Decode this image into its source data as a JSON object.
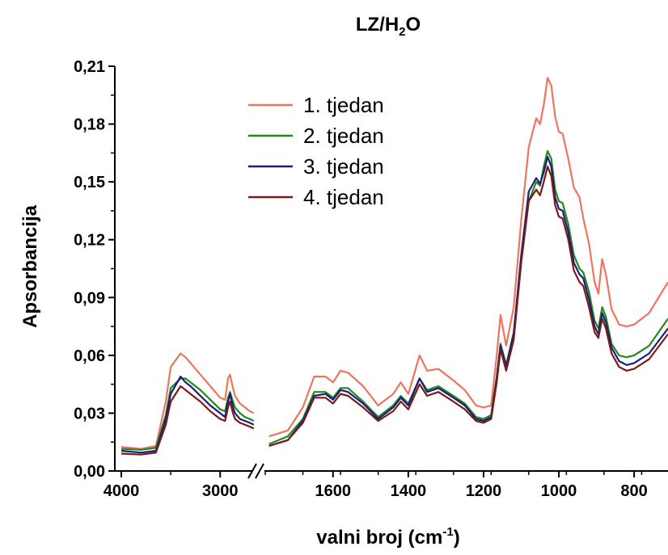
{
  "chart_data": {
    "type": "line",
    "title_main": "LZ/H",
    "title_sub": "2",
    "title_end": "O",
    "xlabel_main": "valni broj (cm",
    "xlabel_sup": "-1",
    "xlabel_end": ")",
    "ylabel": "Apsorbancija",
    "ylim": [
      0,
      0.21
    ],
    "yticks": [
      "0,00",
      "0,03",
      "0,06",
      "0,09",
      "0,12",
      "0,15",
      "0,18",
      "0,21"
    ],
    "x_segments": [
      {
        "xlim": [
          4000,
          2650
        ],
        "ticks": [
          4000,
          3000
        ]
      },
      {
        "xlim": [
          1780,
          710
        ],
        "ticks": [
          1600,
          1400,
          1200,
          1000,
          800
        ]
      }
    ],
    "legend_position": "top-center",
    "series": [
      {
        "name": "1. tjedan",
        "color": "#ed7560",
        "seg1": [
          [
            4000,
            0.0125
          ],
          [
            3800,
            0.0115
          ],
          [
            3650,
            0.013
          ],
          [
            3550,
            0.036
          ],
          [
            3500,
            0.054
          ],
          [
            3400,
            0.061
          ],
          [
            3350,
            0.059
          ],
          [
            3300,
            0.056
          ],
          [
            3200,
            0.05
          ],
          [
            3100,
            0.044
          ],
          [
            3000,
            0.038
          ],
          [
            2950,
            0.037
          ],
          [
            2920,
            0.048
          ],
          [
            2900,
            0.05
          ],
          [
            2870,
            0.043
          ],
          [
            2850,
            0.039
          ],
          [
            2800,
            0.035
          ],
          [
            2750,
            0.033
          ],
          [
            2700,
            0.031
          ],
          [
            2660,
            0.03
          ]
        ],
        "seg2": [
          [
            1770,
            0.018
          ],
          [
            1720,
            0.021
          ],
          [
            1680,
            0.033
          ],
          [
            1650,
            0.049
          ],
          [
            1620,
            0.049
          ],
          [
            1600,
            0.046
          ],
          [
            1580,
            0.052
          ],
          [
            1560,
            0.051
          ],
          [
            1520,
            0.044
          ],
          [
            1480,
            0.034
          ],
          [
            1440,
            0.04
          ],
          [
            1420,
            0.046
          ],
          [
            1400,
            0.04
          ],
          [
            1370,
            0.06
          ],
          [
            1350,
            0.052
          ],
          [
            1320,
            0.053
          ],
          [
            1280,
            0.047
          ],
          [
            1250,
            0.042
          ],
          [
            1220,
            0.034
          ],
          [
            1200,
            0.033
          ],
          [
            1180,
            0.034
          ],
          [
            1165,
            0.06
          ],
          [
            1155,
            0.081
          ],
          [
            1140,
            0.065
          ],
          [
            1120,
            0.085
          ],
          [
            1100,
            0.13
          ],
          [
            1080,
            0.168
          ],
          [
            1060,
            0.183
          ],
          [
            1050,
            0.18
          ],
          [
            1040,
            0.19
          ],
          [
            1030,
            0.204
          ],
          [
            1020,
            0.2
          ],
          [
            1010,
            0.184
          ],
          [
            1000,
            0.176
          ],
          [
            990,
            0.175
          ],
          [
            975,
            0.162
          ],
          [
            960,
            0.147
          ],
          [
            945,
            0.142
          ],
          [
            935,
            0.131
          ],
          [
            920,
            0.118
          ],
          [
            905,
            0.098
          ],
          [
            895,
            0.092
          ],
          [
            885,
            0.11
          ],
          [
            875,
            0.102
          ],
          [
            860,
            0.084
          ],
          [
            840,
            0.076
          ],
          [
            820,
            0.075
          ],
          [
            800,
            0.076
          ],
          [
            760,
            0.082
          ],
          [
            710,
            0.098
          ]
        ]
      },
      {
        "name": "2. tjedan",
        "color": "#1e8a1e",
        "seg1": [
          [
            4000,
            0.0115
          ],
          [
            3800,
            0.011
          ],
          [
            3650,
            0.012
          ],
          [
            3550,
            0.029
          ],
          [
            3500,
            0.043
          ],
          [
            3400,
            0.048
          ],
          [
            3350,
            0.048
          ],
          [
            3300,
            0.046
          ],
          [
            3200,
            0.042
          ],
          [
            3100,
            0.037
          ],
          [
            3000,
            0.032
          ],
          [
            2950,
            0.031
          ],
          [
            2920,
            0.038
          ],
          [
            2900,
            0.041
          ],
          [
            2870,
            0.036
          ],
          [
            2850,
            0.033
          ],
          [
            2800,
            0.03
          ],
          [
            2750,
            0.028
          ],
          [
            2700,
            0.027
          ],
          [
            2660,
            0.026
          ]
        ],
        "seg2": [
          [
            1770,
            0.014
          ],
          [
            1720,
            0.018
          ],
          [
            1680,
            0.027
          ],
          [
            1650,
            0.041
          ],
          [
            1620,
            0.041
          ],
          [
            1600,
            0.038
          ],
          [
            1580,
            0.043
          ],
          [
            1560,
            0.043
          ],
          [
            1520,
            0.036
          ],
          [
            1480,
            0.028
          ],
          [
            1440,
            0.034
          ],
          [
            1420,
            0.039
          ],
          [
            1400,
            0.035
          ],
          [
            1370,
            0.048
          ],
          [
            1350,
            0.042
          ],
          [
            1320,
            0.044
          ],
          [
            1280,
            0.039
          ],
          [
            1250,
            0.035
          ],
          [
            1220,
            0.028
          ],
          [
            1200,
            0.027
          ],
          [
            1180,
            0.029
          ],
          [
            1165,
            0.049
          ],
          [
            1155,
            0.066
          ],
          [
            1140,
            0.055
          ],
          [
            1120,
            0.072
          ],
          [
            1100,
            0.11
          ],
          [
            1080,
            0.14
          ],
          [
            1060,
            0.15
          ],
          [
            1050,
            0.148
          ],
          [
            1040,
            0.158
          ],
          [
            1030,
            0.166
          ],
          [
            1020,
            0.162
          ],
          [
            1010,
            0.146
          ],
          [
            1000,
            0.14
          ],
          [
            990,
            0.139
          ],
          [
            975,
            0.128
          ],
          [
            960,
            0.112
          ],
          [
            945,
            0.105
          ],
          [
            935,
            0.103
          ],
          [
            920,
            0.093
          ],
          [
            905,
            0.078
          ],
          [
            895,
            0.074
          ],
          [
            885,
            0.085
          ],
          [
            875,
            0.08
          ],
          [
            860,
            0.066
          ],
          [
            840,
            0.06
          ],
          [
            820,
            0.059
          ],
          [
            800,
            0.06
          ],
          [
            760,
            0.065
          ],
          [
            710,
            0.079
          ]
        ]
      },
      {
        "name": "3. tjedan",
        "color": "#1c1c7a",
        "seg1": [
          [
            4000,
            0.0105
          ],
          [
            3800,
            0.0095
          ],
          [
            3650,
            0.0105
          ],
          [
            3550,
            0.027
          ],
          [
            3500,
            0.04
          ],
          [
            3400,
            0.049
          ],
          [
            3350,
            0.046
          ],
          [
            3300,
            0.044
          ],
          [
            3200,
            0.039
          ],
          [
            3100,
            0.034
          ],
          [
            3000,
            0.03
          ],
          [
            2950,
            0.028
          ],
          [
            2920,
            0.036
          ],
          [
            2900,
            0.04
          ],
          [
            2870,
            0.033
          ],
          [
            2850,
            0.03
          ],
          [
            2800,
            0.027
          ],
          [
            2750,
            0.026
          ],
          [
            2700,
            0.025
          ],
          [
            2660,
            0.024
          ]
        ],
        "seg2": [
          [
            1770,
            0.013
          ],
          [
            1720,
            0.016
          ],
          [
            1680,
            0.026
          ],
          [
            1650,
            0.039
          ],
          [
            1620,
            0.04
          ],
          [
            1600,
            0.037
          ],
          [
            1580,
            0.042
          ],
          [
            1560,
            0.041
          ],
          [
            1520,
            0.035
          ],
          [
            1480,
            0.027
          ],
          [
            1440,
            0.033
          ],
          [
            1420,
            0.038
          ],
          [
            1400,
            0.034
          ],
          [
            1370,
            0.048
          ],
          [
            1350,
            0.041
          ],
          [
            1320,
            0.043
          ],
          [
            1280,
            0.038
          ],
          [
            1250,
            0.034
          ],
          [
            1220,
            0.027
          ],
          [
            1200,
            0.026
          ],
          [
            1180,
            0.028
          ],
          [
            1165,
            0.048
          ],
          [
            1155,
            0.065
          ],
          [
            1140,
            0.054
          ],
          [
            1120,
            0.071
          ],
          [
            1100,
            0.112
          ],
          [
            1080,
            0.145
          ],
          [
            1060,
            0.152
          ],
          [
            1050,
            0.149
          ],
          [
            1040,
            0.155
          ],
          [
            1030,
            0.163
          ],
          [
            1020,
            0.158
          ],
          [
            1010,
            0.142
          ],
          [
            1000,
            0.136
          ],
          [
            990,
            0.135
          ],
          [
            975,
            0.124
          ],
          [
            960,
            0.108
          ],
          [
            945,
            0.102
          ],
          [
            935,
            0.1
          ],
          [
            920,
            0.089
          ],
          [
            905,
            0.075
          ],
          [
            895,
            0.071
          ],
          [
            885,
            0.082
          ],
          [
            875,
            0.077
          ],
          [
            860,
            0.064
          ],
          [
            840,
            0.057
          ],
          [
            820,
            0.055
          ],
          [
            800,
            0.056
          ],
          [
            760,
            0.061
          ],
          [
            710,
            0.074
          ]
        ]
      },
      {
        "name": "4. tjedan",
        "color": "#7a1a1a",
        "seg1": [
          [
            4000,
            0.009
          ],
          [
            3800,
            0.0085
          ],
          [
            3650,
            0.0095
          ],
          [
            3550,
            0.024
          ],
          [
            3500,
            0.036
          ],
          [
            3400,
            0.044
          ],
          [
            3350,
            0.042
          ],
          [
            3300,
            0.04
          ],
          [
            3200,
            0.036
          ],
          [
            3100,
            0.031
          ],
          [
            3000,
            0.027
          ],
          [
            2950,
            0.026
          ],
          [
            2920,
            0.033
          ],
          [
            2900,
            0.036
          ],
          [
            2870,
            0.03
          ],
          [
            2850,
            0.027
          ],
          [
            2800,
            0.025
          ],
          [
            2750,
            0.024
          ],
          [
            2700,
            0.023
          ],
          [
            2660,
            0.022
          ]
        ],
        "seg2": [
          [
            1770,
            0.013
          ],
          [
            1720,
            0.016
          ],
          [
            1680,
            0.025
          ],
          [
            1650,
            0.038
          ],
          [
            1620,
            0.038
          ],
          [
            1600,
            0.035
          ],
          [
            1580,
            0.04
          ],
          [
            1560,
            0.039
          ],
          [
            1520,
            0.033
          ],
          [
            1480,
            0.026
          ],
          [
            1440,
            0.031
          ],
          [
            1420,
            0.036
          ],
          [
            1400,
            0.032
          ],
          [
            1370,
            0.045
          ],
          [
            1350,
            0.039
          ],
          [
            1320,
            0.041
          ],
          [
            1280,
            0.036
          ],
          [
            1250,
            0.032
          ],
          [
            1220,
            0.026
          ],
          [
            1200,
            0.025
          ],
          [
            1180,
            0.027
          ],
          [
            1165,
            0.046
          ],
          [
            1155,
            0.063
          ],
          [
            1140,
            0.052
          ],
          [
            1120,
            0.068
          ],
          [
            1100,
            0.108
          ],
          [
            1080,
            0.14
          ],
          [
            1060,
            0.146
          ],
          [
            1050,
            0.143
          ],
          [
            1040,
            0.15
          ],
          [
            1030,
            0.158
          ],
          [
            1020,
            0.153
          ],
          [
            1010,
            0.138
          ],
          [
            1000,
            0.132
          ],
          [
            990,
            0.131
          ],
          [
            975,
            0.12
          ],
          [
            960,
            0.104
          ],
          [
            945,
            0.098
          ],
          [
            935,
            0.096
          ],
          [
            920,
            0.085
          ],
          [
            905,
            0.072
          ],
          [
            895,
            0.069
          ],
          [
            885,
            0.079
          ],
          [
            875,
            0.074
          ],
          [
            860,
            0.061
          ],
          [
            840,
            0.054
          ],
          [
            820,
            0.052
          ],
          [
            800,
            0.053
          ],
          [
            760,
            0.058
          ],
          [
            710,
            0.071
          ]
        ]
      }
    ]
  }
}
